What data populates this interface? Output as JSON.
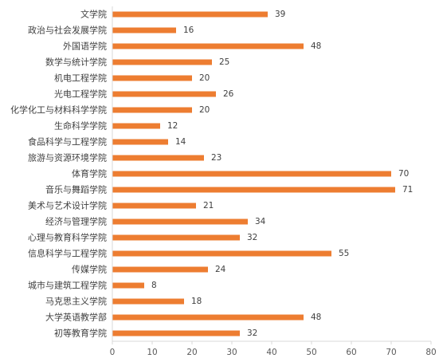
{
  "chart_data": {
    "type": "bar",
    "orientation": "horizontal",
    "title": "",
    "xlabel": "",
    "ylabel": "",
    "categories": [
      "文学院",
      "政治与社会发展学院",
      "外国语学院",
      "数学与统计学院",
      "机电工程学院",
      "光电工程学院",
      "化学化工与材料科学学院",
      "生命科学学院",
      "食品科学与工程学院",
      "旅游与资源环境学院",
      "体育学院",
      "音乐与舞蹈学院",
      "美术与艺术设计学院",
      "经济与管理学院",
      "心理与教育科学学院",
      "信息科学与工程学院",
      "传媒学院",
      "城市与建筑工程学院",
      "马克思主义学院",
      "大学英语教学部",
      "初等教育学院"
    ],
    "values": [
      39,
      16,
      48,
      25,
      20,
      26,
      20,
      12,
      14,
      23,
      70,
      71,
      21,
      34,
      32,
      55,
      24,
      8,
      18,
      48,
      32
    ],
    "xlim": [
      0,
      80
    ],
    "xticks": [
      0,
      10,
      20,
      30,
      40,
      50,
      60,
      70,
      80
    ],
    "grid": false,
    "legend": "none",
    "data_labels": true,
    "colors": {
      "bar": "#ED7D31",
      "axis": "#D9D9D9",
      "text": "#404040"
    }
  }
}
